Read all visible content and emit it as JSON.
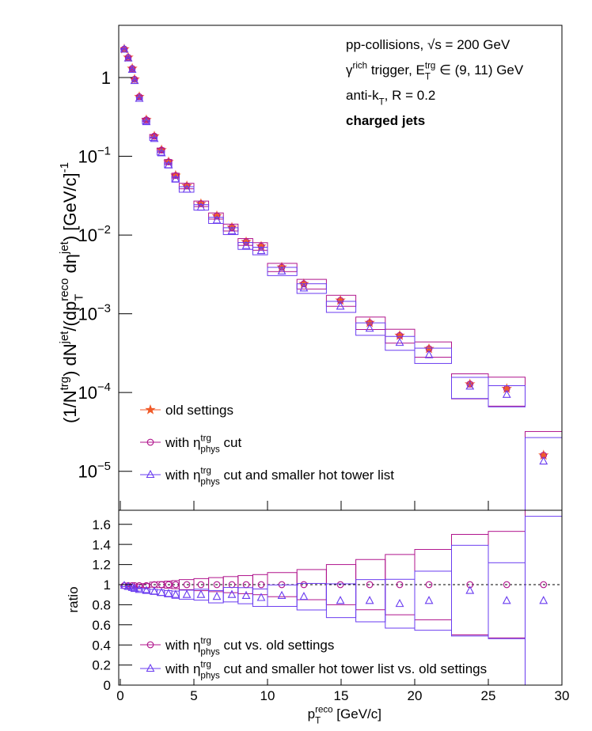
{
  "chart_data": [
    {
      "type": "scatter",
      "log": true,
      "annotations": [
        [
          {
            "text": "pp-collisions, √s = 200 GeV"
          }
        ],
        [
          {
            "text": "γ"
          },
          {
            "sup": "rich"
          },
          {
            "text": " trigger, E"
          },
          {
            "sup": "trg"
          },
          {
            "sub": "T"
          },
          {
            "text": " ∈ (9, 11) GeV"
          }
        ],
        [
          {
            "text": "anti-k"
          },
          {
            "sub": "T"
          },
          {
            "text": ", R = 0.2"
          }
        ],
        [
          {
            "text": "charged jets"
          }
        ]
      ],
      "ylabel": [
        {
          "text": "(1/N"
        },
        {
          "sup": "trg"
        },
        {
          "text": ") dN"
        },
        {
          "sup": "jet"
        },
        {
          "text": "/(dp"
        },
        {
          "sup": "reco"
        },
        {
          "sub": "T"
        },
        {
          "text": " dη"
        },
        {
          "sup": "jet"
        },
        {
          "text": ") [GeV/c]"
        },
        {
          "sup": "-1"
        }
      ],
      "x": [
        0.27,
        0.54,
        0.81,
        0.97,
        1.29,
        1.77,
        2.31,
        2.8,
        3.28,
        3.76,
        4.52,
        5.48,
        6.56,
        7.58,
        8.55,
        9.57,
        10.97,
        12.47,
        14.95,
        16.94,
        18.98,
        20.97,
        23.75,
        26.25,
        28.75
      ],
      "bin_edges": [
        0,
        0.4,
        0.67,
        0.9,
        1.1,
        1.5,
        2,
        2.5,
        3,
        3.5,
        4,
        5,
        6,
        7,
        8,
        9,
        10,
        12,
        14,
        16,
        18,
        20,
        22.5,
        25,
        27.5,
        30
      ],
      "xlim": [
        0,
        30
      ],
      "xticks": [
        0,
        5,
        10,
        15,
        20,
        25,
        30
      ],
      "ylim": [
        3.2e-06,
        4.6
      ],
      "yticks": [
        {
          "value": 1e-05,
          "label": "10",
          "exponent": "−5"
        },
        {
          "value": 0.0001,
          "label": "10",
          "exponent": "−4"
        },
        {
          "value": 0.001,
          "label": "10",
          "exponent": "−3"
        },
        {
          "value": 0.01,
          "label": "10",
          "exponent": "−2"
        },
        {
          "value": 0.1,
          "label": "10",
          "exponent": "−1"
        },
        1
      ],
      "series": [
        {
          "name": [
            {
              "text": "old settings"
            }
          ],
          "color": "#f05a28",
          "marker": "star",
          "values": [
            2.3,
            1.8,
            1.3,
            0.95,
            0.57,
            0.29,
            0.18,
            0.12,
            0.085,
            0.057,
            0.042,
            0.025,
            0.0175,
            0.0125,
            0.0082,
            0.0072,
            0.0039,
            0.0024,
            0.00148,
            0.00077,
            0.00053,
            0.00036,
            0.000128,
            0.000112,
            1.6e-05
          ]
        },
        {
          "name": [
            {
              "text": "with η"
            },
            {
              "sup": "trg"
            },
            {
              "sub": "phys"
            },
            {
              "text": " cut"
            }
          ],
          "color": "#b0148c",
          "marker": "circle",
          "values": [
            2.3,
            1.8,
            1.3,
            0.95,
            0.57,
            0.29,
            0.18,
            0.12,
            0.085,
            0.057,
            0.042,
            0.025,
            0.0175,
            0.0125,
            0.0082,
            0.0072,
            0.0039,
            0.0024,
            0.00148,
            0.00077,
            0.00053,
            0.00036,
            0.000128,
            0.000112,
            1.6e-05
          ],
          "sys_rel": [
            0.02,
            0.02,
            0.03,
            0.03,
            0.04,
            0.05,
            0.05,
            0.06,
            0.07,
            0.07,
            0.08,
            0.08,
            0.09,
            0.1,
            0.1,
            0.11,
            0.12,
            0.14,
            0.16,
            0.18,
            0.2,
            0.22,
            0.35,
            0.4,
            1.0
          ]
        },
        {
          "name": [
            {
              "text": "with η"
            },
            {
              "sup": "trg"
            },
            {
              "sub": "phys"
            },
            {
              "text": " cut and smaller hot tower list"
            }
          ],
          "color": "#6a3cf0",
          "marker": "triangle",
          "values": [
            2.28,
            1.76,
            1.26,
            0.91,
            0.54,
            0.273,
            0.167,
            0.11,
            0.077,
            0.051,
            0.038,
            0.0225,
            0.0154,
            0.01125,
            0.0073,
            0.0063,
            0.00347,
            0.00211,
            0.00124,
            0.00065,
            0.00043,
            0.0003,
            0.00012,
            9.4e-05,
            1.34e-05
          ],
          "sys_rel": [
            0.02,
            0.02,
            0.03,
            0.03,
            0.04,
            0.05,
            0.05,
            0.06,
            0.07,
            0.07,
            0.08,
            0.08,
            0.09,
            0.1,
            0.1,
            0.11,
            0.12,
            0.14,
            0.16,
            0.18,
            0.2,
            0.22,
            0.3,
            0.3,
            1.0
          ]
        }
      ]
    },
    {
      "type": "scatter",
      "log": false,
      "ylabel": [
        {
          "text": "ratio"
        }
      ],
      "xlabel": [
        {
          "text": "p"
        },
        {
          "sup": "reco"
        },
        {
          "sub": "T"
        },
        {
          "text": " [GeV/c]"
        }
      ],
      "x": [
        0.27,
        0.54,
        0.81,
        0.97,
        1.29,
        1.77,
        2.31,
        2.8,
        3.28,
        3.76,
        4.52,
        5.48,
        6.56,
        7.58,
        8.55,
        9.57,
        10.97,
        12.47,
        14.95,
        16.94,
        18.98,
        20.97,
        23.75,
        26.25,
        28.75
      ],
      "bin_edges": [
        0,
        0.4,
        0.67,
        0.9,
        1.1,
        1.5,
        2,
        2.5,
        3,
        3.5,
        4,
        5,
        6,
        7,
        8,
        9,
        10,
        12,
        14,
        16,
        18,
        20,
        22.5,
        25,
        27.5,
        30
      ],
      "xlim": [
        0,
        30
      ],
      "xticks": [
        0,
        5,
        10,
        15,
        20,
        25,
        30
      ],
      "ylim": [
        0,
        1.74
      ],
      "yticks": [
        0,
        0.2,
        0.4,
        0.6,
        0.8,
        1,
        1.2,
        1.4,
        1.6
      ],
      "ref_line": 1,
      "series": [
        {
          "name": [
            {
              "text": "with η"
            },
            {
              "sup": "trg"
            },
            {
              "sub": "phys"
            },
            {
              "text": " cut vs. old settings"
            }
          ],
          "color": "#b0148c",
          "marker": "circle",
          "values": [
            0.99,
            0.99,
            0.99,
            0.99,
            0.99,
            0.99,
            1,
            1,
            1,
            1,
            1,
            1,
            1,
            1,
            1,
            1,
            1,
            1,
            1,
            1,
            1,
            1,
            1,
            1,
            1
          ],
          "sys_rel": [
            0.01,
            0.01,
            0.01,
            0.01,
            0.015,
            0.02,
            0.025,
            0.03,
            0.035,
            0.04,
            0.05,
            0.06,
            0.07,
            0.08,
            0.09,
            0.1,
            0.12,
            0.15,
            0.2,
            0.25,
            0.3,
            0.35,
            0.5,
            0.53,
            1.0
          ]
        },
        {
          "name": [
            {
              "text": "with η"
            },
            {
              "sup": "trg"
            },
            {
              "sub": "phys"
            },
            {
              "text": " cut and smaller hot tower list vs. old settings"
            }
          ],
          "color": "#6a3cf0",
          "marker": "triangle",
          "values": [
            0.99,
            0.98,
            0.97,
            0.96,
            0.95,
            0.94,
            0.93,
            0.92,
            0.91,
            0.9,
            0.9,
            0.9,
            0.88,
            0.9,
            0.89,
            0.87,
            0.89,
            0.88,
            0.84,
            0.84,
            0.81,
            0.84,
            0.94,
            0.84,
            0.84
          ],
          "sys_rel": [
            0.01,
            0.01,
            0.01,
            0.01,
            0.015,
            0.02,
            0.025,
            0.03,
            0.035,
            0.04,
            0.05,
            0.06,
            0.07,
            0.08,
            0.09,
            0.1,
            0.12,
            0.15,
            0.2,
            0.25,
            0.3,
            0.35,
            0.48,
            0.45,
            1.0
          ]
        }
      ]
    }
  ]
}
